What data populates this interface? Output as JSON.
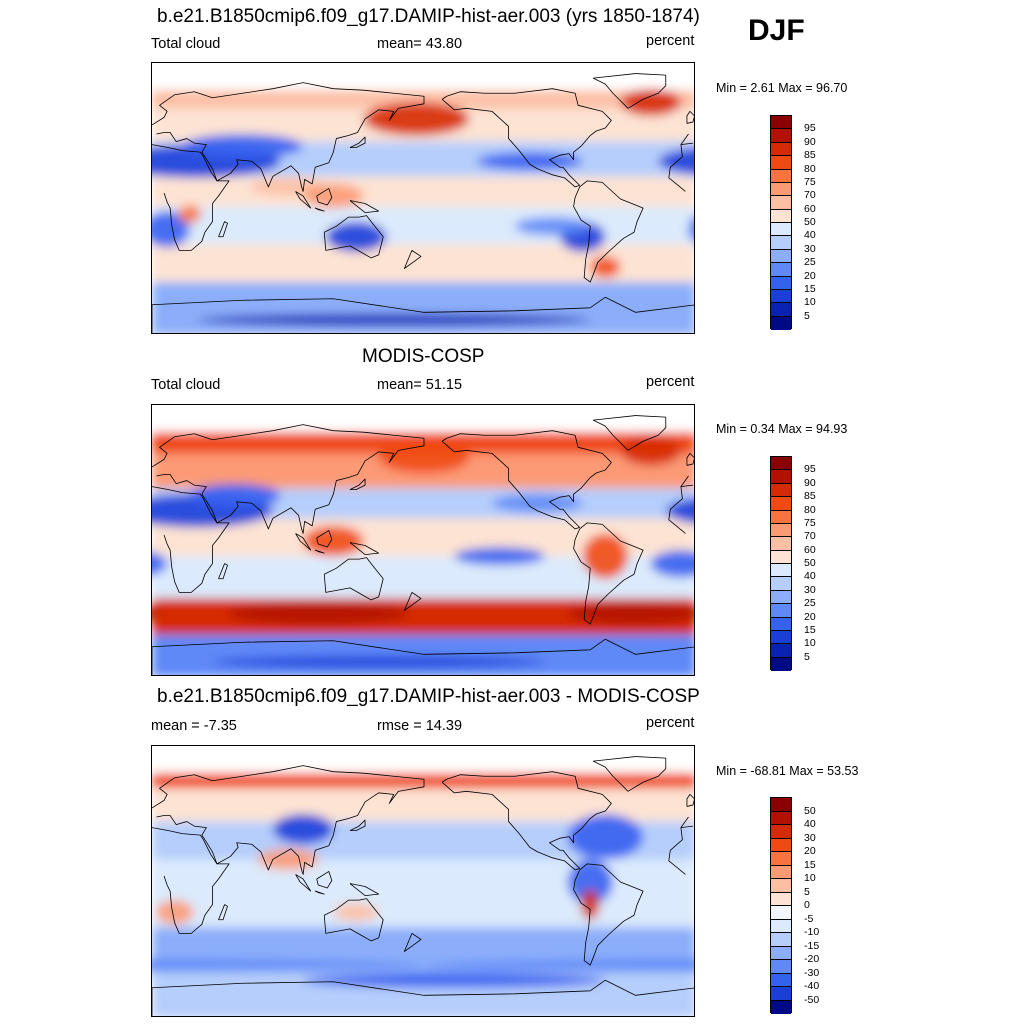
{
  "season": "DJF",
  "panels": [
    {
      "title": "b.e21.B1850cmip6.f09_g17.DAMIP-hist-aer.003 (yrs 1850-1874)",
      "left_label": "Total cloud",
      "center_label": "mean=  43.80",
      "right_label": "percent",
      "minmax": "Min =   2.61 Max =  96.70",
      "colorbar_labels": [
        "95",
        "90",
        "85",
        "80",
        "75",
        "70",
        "60",
        "50",
        "40",
        "30",
        "25",
        "20",
        "15",
        "10",
        "5"
      ],
      "colorbar_colors": [
        "#8b0000",
        "#b31000",
        "#d62a04",
        "#f04a12",
        "#f9733f",
        "#fc9a74",
        "#fdbfa4",
        "#fde3d3",
        "#dbeafc",
        "#b5cefb",
        "#8caefa",
        "#5e89f7",
        "#3561ef",
        "#1a3fd9",
        "#0a22b4",
        "#000a87"
      ],
      "map_mode": "model"
    },
    {
      "title": "MODIS-COSP",
      "left_label": "Total cloud",
      "center_label": "mean=  51.15",
      "right_label": "percent",
      "minmax": "Min =   0.34 Max =  94.93",
      "colorbar_labels": [
        "95",
        "90",
        "85",
        "80",
        "75",
        "70",
        "60",
        "50",
        "40",
        "30",
        "25",
        "20",
        "15",
        "10",
        "5"
      ],
      "colorbar_colors": [
        "#8b0000",
        "#b31000",
        "#d62a04",
        "#f04a12",
        "#f9733f",
        "#fc9a74",
        "#fdbfa4",
        "#fde3d3",
        "#dbeafc",
        "#b5cefb",
        "#8caefa",
        "#5e89f7",
        "#3561ef",
        "#1a3fd9",
        "#0a22b4",
        "#000a87"
      ],
      "map_mode": "obs"
    },
    {
      "title": "b.e21.B1850cmip6.f09_g17.DAMIP-hist-aer.003 - MODIS-COSP",
      "left_label": "mean =  -7.35",
      "center_label": "rmse =  14.39",
      "right_label": "percent",
      "minmax": "Min = -68.81 Max =  53.53",
      "colorbar_labels": [
        "50",
        "40",
        "30",
        "20",
        "15",
        "10",
        "5",
        "0",
        "-5",
        "-10",
        "-15",
        "-20",
        "-30",
        "-40",
        "-50"
      ],
      "colorbar_colors": [
        "#8b0000",
        "#b31000",
        "#d62a04",
        "#f04a12",
        "#f9733f",
        "#fc9a74",
        "#fdbfa4",
        "#fde3d3",
        "#f4f6fd",
        "#dbeafc",
        "#b5cefb",
        "#8caefa",
        "#5e89f7",
        "#3561ef",
        "#1a3fd9",
        "#000a87"
      ],
      "map_mode": "diff"
    }
  ]
}
